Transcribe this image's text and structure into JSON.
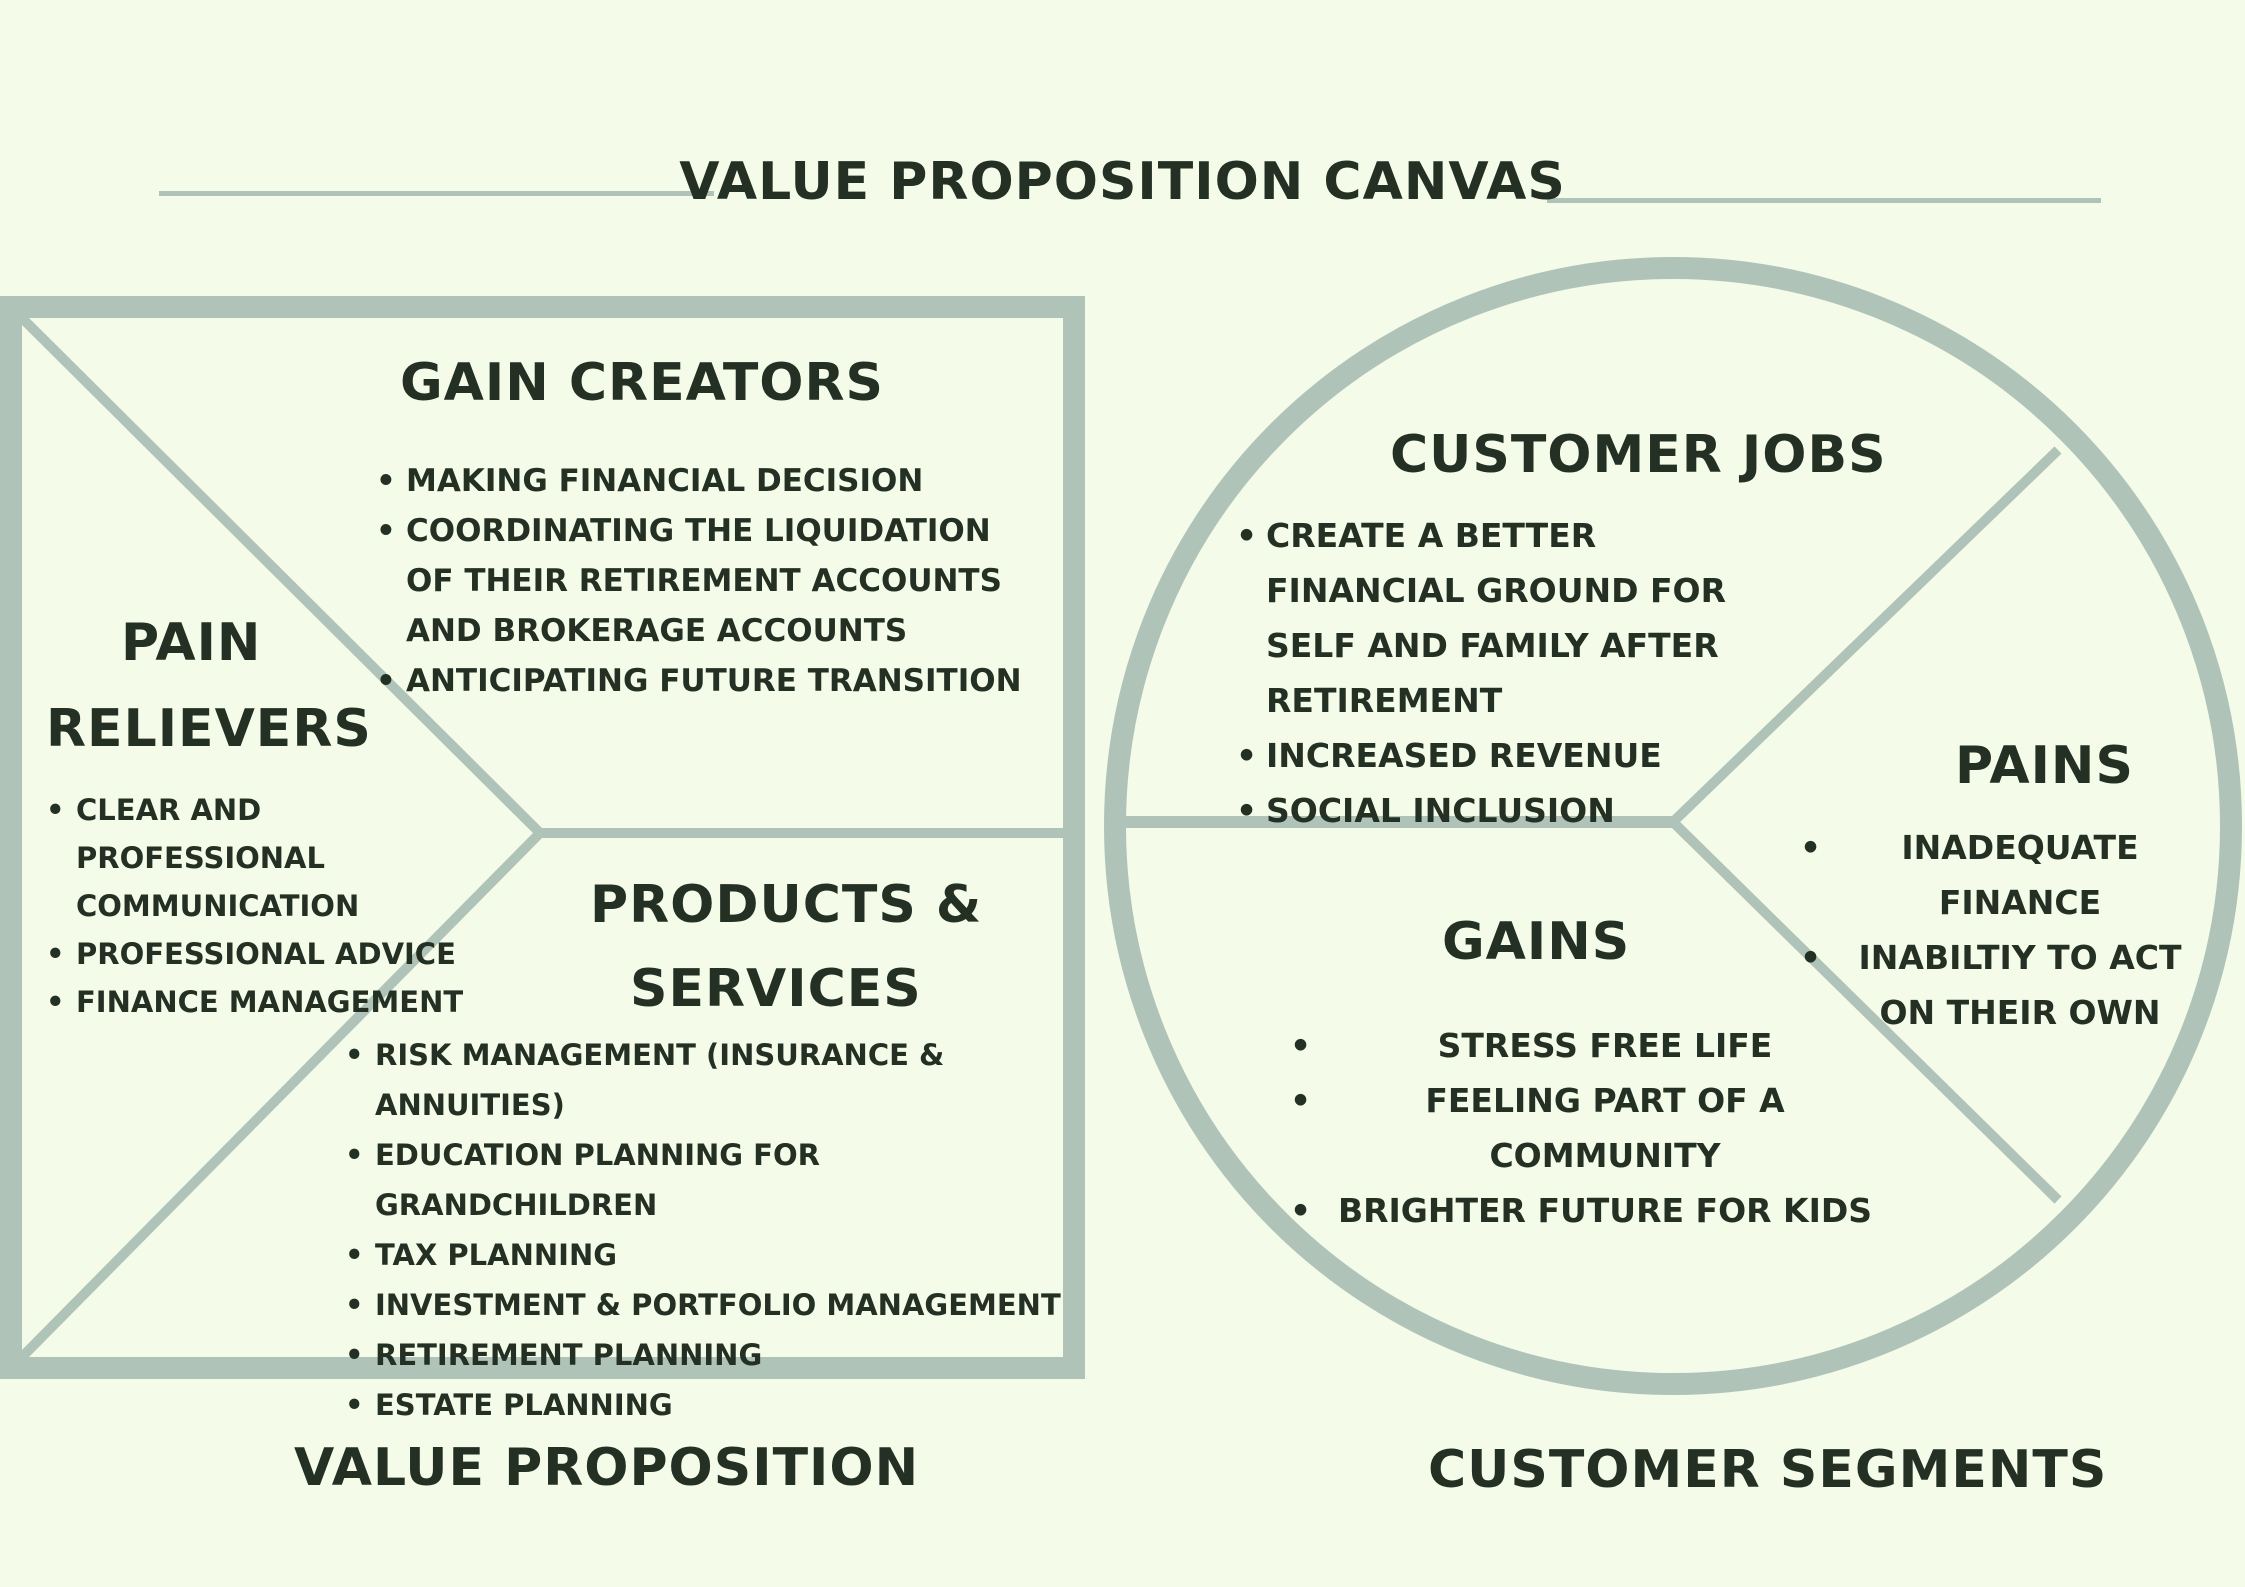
{
  "title": "VALUE PROPOSITION CANVAS",
  "colors": {
    "background": "#f4fbe9",
    "frame": "#b0c3b9",
    "text": "#243024"
  },
  "value_proposition": {
    "gain_creators": {
      "heading": "GAIN CREATORS",
      "items": [
        "MAKING FINANCIAL DECISION",
        "COORDINATING THE LIQUIDATION OF THEIR RETIREMENT ACCOUNTS AND BROKERAGE ACCOUNTS",
        "ANTICIPATING FUTURE TRANSITION"
      ]
    },
    "pain_relievers": {
      "heading_line1": "PAIN",
      "heading_line2": "RELIEVERS",
      "items": [
        "CLEAR AND PROFESSIONAL COMMUNICATION",
        "PROFESSIONAL ADVICE",
        "FINANCE MANAGEMENT"
      ]
    },
    "products_services": {
      "heading_line1": "PRODUCTS &",
      "heading_line2": "SERVICES",
      "items": [
        "RISK MANAGEMENT (INSURANCE & ANNUITIES)",
        "EDUCATION PLANNING FOR GRANDCHILDREN",
        "TAX PLANNING",
        "INVESTMENT & PORTFOLIO MANAGEMENT",
        "RETIREMENT PLANNING",
        "ESTATE PLANNING"
      ]
    },
    "footer": "VALUE PROPOSITION"
  },
  "customer_segments": {
    "customer_jobs": {
      "heading": "CUSTOMER JOBS",
      "items": [
        "CREATE A BETTER FINANCIAL GROUND FOR SELF AND FAMILY AFTER RETIREMENT",
        "INCREASED REVENUE",
        "SOCIAL INCLUSION"
      ]
    },
    "pains": {
      "heading": "PAINS",
      "items": [
        "INADEQUATE FINANCE",
        "INABILTIY TO ACT ON THEIR OWN"
      ]
    },
    "gains": {
      "heading": "GAINS",
      "items": [
        "STRESS FREE LIFE",
        "FEELING PART OF A COMMUNITY",
        "BRIGHTER FUTURE FOR KIDS"
      ]
    },
    "footer": "CUSTOMER SEGMENTS"
  }
}
